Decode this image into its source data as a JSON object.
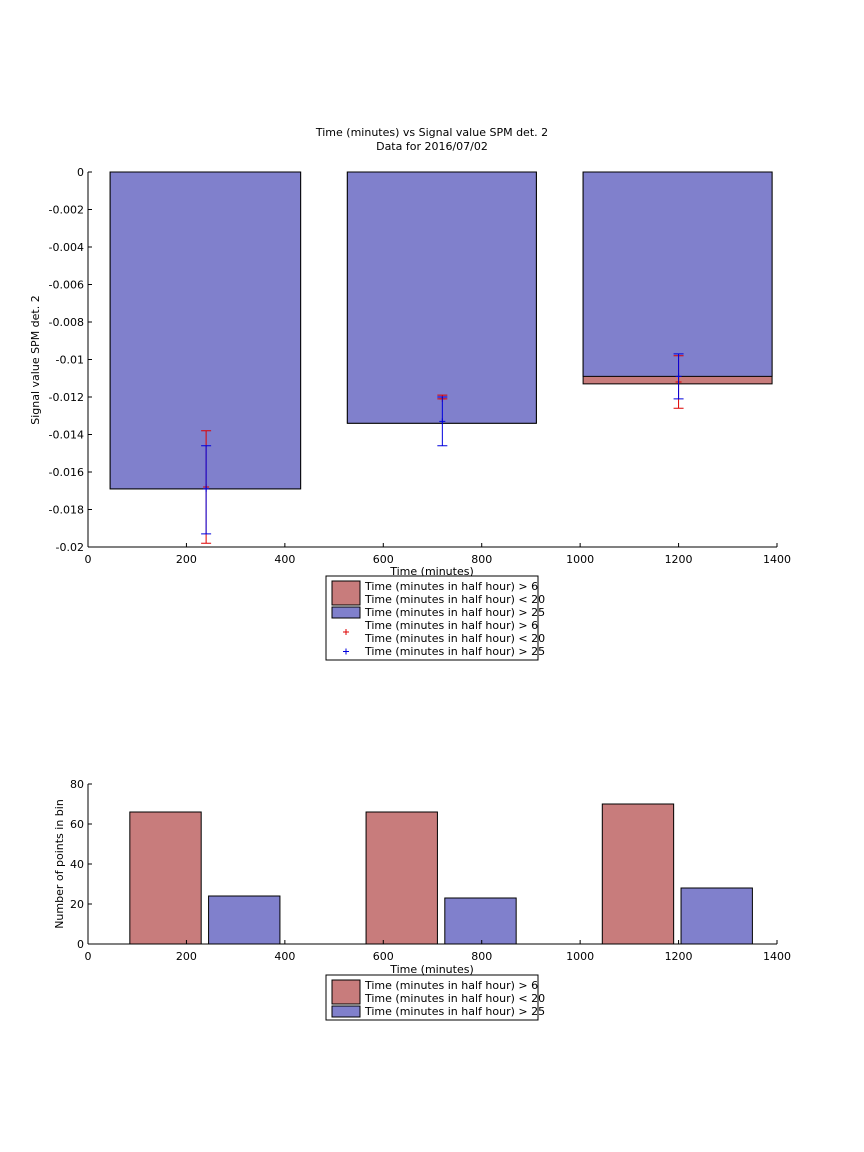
{
  "chart_data": [
    {
      "type": "bar",
      "title": "Time (minutes) vs Signal value SPM det. 2",
      "subtitle": "Data for 2016/07/02",
      "xlabel": "Time (minutes)",
      "ylabel": "Signal value SPM det. 2",
      "xlim": [
        0,
        1400
      ],
      "ylim": [
        -0.02,
        0
      ],
      "xticks": [
        "0",
        "200",
        "400",
        "600",
        "800",
        "1000",
        "1200",
        "1400"
      ],
      "yticks": [
        "0",
        "-0.002",
        "-0.004",
        "-0.006",
        "-0.008",
        "-0.01",
        "-0.012",
        "-0.014",
        "-0.016",
        "-0.018",
        "-0.02"
      ],
      "grid": false,
      "legend_position": "below",
      "bar_series": [
        {
          "name": "Time (minutes in half hour) > 6\nTime (minutes in half hour) < 20",
          "color": "#c87c7c",
          "bars": [
            {
              "x_start": 45,
              "x_end": 432,
              "value": -0.0169
            },
            {
              "x_start": 527,
              "x_end": 911,
              "value": -0.0134
            },
            {
              "x_start": 1006,
              "x_end": 1390,
              "value": -0.0113
            }
          ]
        },
        {
          "name": "Time (minutes in half hour) > 25",
          "color": "#8080cc",
          "bars": [
            {
              "x_start": 45,
              "x_end": 432,
              "value": -0.0169
            },
            {
              "x_start": 527,
              "x_end": 911,
              "value": -0.0134
            },
            {
              "x_start": 1006,
              "x_end": 1390,
              "value": -0.0109
            }
          ]
        }
      ],
      "errorbar_series": [
        {
          "name": "Time (minutes in half hour) > 6\nTime (minutes in half hour) < 20",
          "marker": "+",
          "color": "#dd0000",
          "points": [
            {
              "x": 240,
              "y": -0.0168,
              "low": -0.0198,
              "high": -0.0138
            },
            {
              "x": 720,
              "y": -0.0121,
              "low": -0.0121,
              "high": -0.0119
            },
            {
              "x": 1200,
              "y": -0.0112,
              "low": -0.0126,
              "high": -0.0098
            }
          ]
        },
        {
          "name": "Time (minutes in half hour) > 25",
          "marker": "+",
          "color": "#0000dd",
          "points": [
            {
              "x": 240,
              "y": -0.0169,
              "low": -0.0193,
              "high": -0.0146
            },
            {
              "x": 720,
              "y": -0.0133,
              "low": -0.0146,
              "high": -0.012
            },
            {
              "x": 1200,
              "y": -0.0109,
              "low": -0.0121,
              "high": -0.0097
            }
          ]
        }
      ],
      "legend": [
        {
          "kind": "patch",
          "color": "#c87c7c",
          "lines": [
            "Time (minutes in half hour) > 6",
            "Time (minutes in half hour) < 20"
          ]
        },
        {
          "kind": "patch",
          "color": "#8080cc",
          "lines": [
            "Time (minutes in half hour) > 25"
          ]
        },
        {
          "kind": "marker",
          "color": "#dd0000",
          "lines": [
            "Time (minutes in half hour) > 6",
            "Time (minutes in half hour) < 20"
          ]
        },
        {
          "kind": "marker",
          "color": "#0000dd",
          "lines": [
            "Time (minutes in half hour) > 25"
          ]
        }
      ]
    },
    {
      "type": "bar",
      "title": "",
      "xlabel": "Time (minutes)",
      "ylabel": "Number of points in bin",
      "xlim": [
        0,
        1400
      ],
      "ylim": [
        0,
        80
      ],
      "xticks": [
        "0",
        "200",
        "400",
        "600",
        "800",
        "1000",
        "1200",
        "1400"
      ],
      "yticks": [
        "0",
        "20",
        "40",
        "60",
        "80"
      ],
      "grid": false,
      "legend_position": "below",
      "bar_series": [
        {
          "name": "Time (minutes in half hour) > 6\nTime (minutes in half hour) < 20",
          "color": "#c87c7c",
          "bars": [
            {
              "x_start": 85,
              "x_end": 230,
              "value": 66
            },
            {
              "x_start": 565,
              "x_end": 710,
              "value": 66
            },
            {
              "x_start": 1045,
              "x_end": 1190,
              "value": 70
            }
          ]
        },
        {
          "name": "Time (minutes in half hour) > 25",
          "color": "#8080cc",
          "bars": [
            {
              "x_start": 245,
              "x_end": 390,
              "value": 24
            },
            {
              "x_start": 725,
              "x_end": 870,
              "value": 23
            },
            {
              "x_start": 1205,
              "x_end": 1350,
              "value": 28
            }
          ]
        }
      ],
      "legend": [
        {
          "kind": "patch",
          "color": "#c87c7c",
          "lines": [
            "Time (minutes in half hour) > 6",
            "Time (minutes in half hour) < 20"
          ]
        },
        {
          "kind": "patch",
          "color": "#8080cc",
          "lines": [
            "Time (minutes in half hour) > 25"
          ]
        }
      ]
    }
  ]
}
